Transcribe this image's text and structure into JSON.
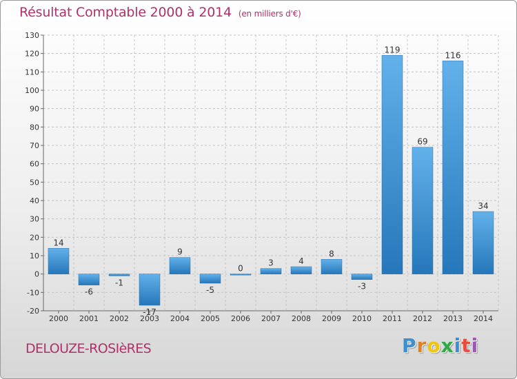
{
  "chart_data": {
    "type": "bar",
    "title": "Résultat Comptable 2000 à 2014",
    "subtitle": "(en milliers d'€)",
    "categories": [
      "2000",
      "2001",
      "2002",
      "2003",
      "2004",
      "2005",
      "2006",
      "2007",
      "2008",
      "2009",
      "2010",
      "2011",
      "2012",
      "2013",
      "2014"
    ],
    "values": [
      14,
      -6,
      -1,
      -17,
      9,
      -5,
      0,
      3,
      4,
      8,
      -3,
      119,
      69,
      116,
      34
    ],
    "value_labels": [
      "14",
      "-6",
      "-1",
      "-17",
      "9",
      "-5",
      "0",
      "3",
      "4",
      "8",
      "-3",
      "119",
      "69",
      "116",
      "34"
    ],
    "yticks": [
      -20,
      -10,
      0,
      10,
      20,
      30,
      40,
      50,
      60,
      70,
      80,
      90,
      100,
      110,
      120,
      130
    ],
    "ylim": [
      -20,
      130
    ],
    "grid": true,
    "legend": "none",
    "bar_color": "#4a9cd9",
    "xlabel": "",
    "ylabel": ""
  },
  "footer": {
    "commune": "DELOUZE-ROSIèRES",
    "logo": {
      "letters": [
        "P",
        "r",
        "o",
        "x",
        "i",
        "t",
        "i"
      ],
      "colors": [
        "#3d8fd1",
        "#e67e22",
        "#f1c40f",
        "#2eaa45",
        "#3d8fd1",
        "#e74c3c",
        "#9b59b6"
      ]
    }
  },
  "colors": {
    "title": "#b0306a",
    "grid": "#c4c4c4",
    "axis": "#666666"
  }
}
